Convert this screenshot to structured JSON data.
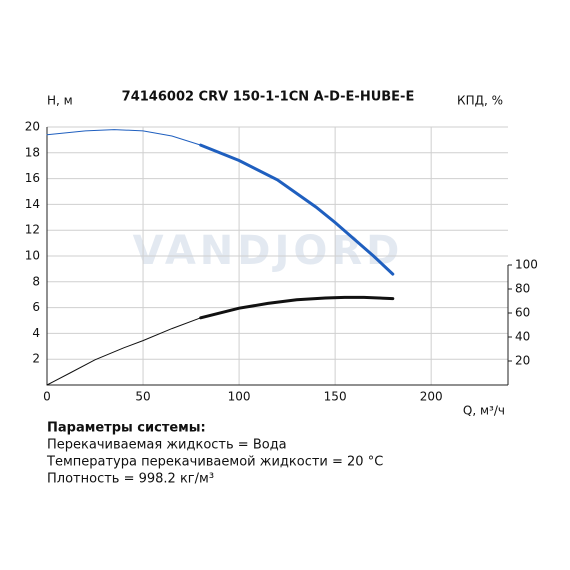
{
  "chart_data": {
    "type": "line",
    "title": "74146002 CRV 150-1-1CN A-D-E-HUBE-E",
    "watermark": "VANDJORD",
    "ylabel": "Н, м",
    "y2label": "КПД, %",
    "xlabel": "Q, м³/ч",
    "xlim": [
      0,
      240
    ],
    "xticks": [
      0,
      50,
      100,
      150,
      200
    ],
    "ylim": [
      0,
      20
    ],
    "yticks": [
      2,
      4,
      6,
      8,
      10,
      12,
      14,
      16,
      18,
      20
    ],
    "y2lim": [
      0,
      215
    ],
    "y2ticks": [
      20,
      40,
      60,
      80,
      100
    ],
    "grid": true,
    "series": [
      {
        "x": [
          0,
          20,
          35,
          50,
          65,
          80
        ],
        "values": [
          19.4,
          19.7,
          19.8,
          19.7,
          19.3,
          18.6
        ],
        "color": "#1f5fbf"
      },
      {
        "x": [
          80,
          100,
          120,
          140,
          150,
          160,
          170,
          180
        ],
        "values": [
          18.6,
          17.4,
          15.9,
          13.8,
          12.6,
          11.3,
          10.0,
          8.6
        ],
        "color": "#1f5fbf"
      },
      {
        "x": [
          0,
          12,
          25,
          40,
          50,
          65,
          80
        ],
        "values": [
          0,
          10,
          21,
          31,
          37,
          47,
          56
        ],
        "color": "#111111",
        "axis": "y2"
      },
      {
        "x": [
          80,
          100,
          115,
          130,
          145,
          155,
          165,
          180
        ],
        "values": [
          56,
          64,
          68,
          71,
          72.5,
          73,
          73,
          72
        ],
        "color": "#111111",
        "axis": "y2"
      }
    ]
  },
  "notes": {
    "title": "Параметры системы:",
    "lines": [
      "Перекачиваемая жидкость = Вода",
      "Температура перекачиваемой жидкости = 20 °C",
      "Плотность = 998.2 кг/м³"
    ]
  }
}
